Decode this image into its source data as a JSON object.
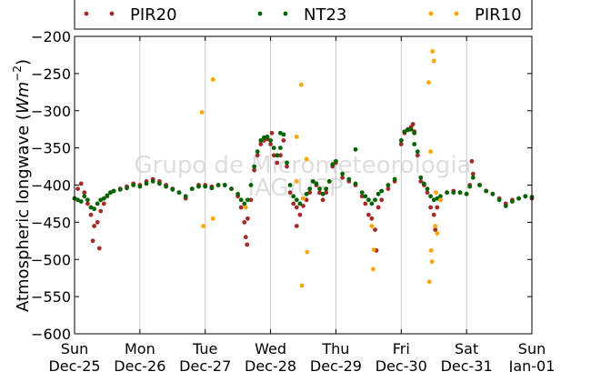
{
  "chart_data": {
    "type": "scatter",
    "ylabel": "Atmospheric longwave (Wm⁻²)",
    "ylabel_parts": {
      "text": "Atmospheric longwave (",
      "unit": "Wm",
      "exp": "−2",
      "close": ")"
    },
    "ylim": [
      -600,
      -200
    ],
    "yticks": [
      -600,
      -550,
      -500,
      -450,
      -400,
      -350,
      -300,
      -250,
      -200
    ],
    "ytick_labels": [
      "−600",
      "−550",
      "−500",
      "−450",
      "−400",
      "−350",
      "−300",
      "−250",
      "−200"
    ],
    "xlim": [
      0,
      7
    ],
    "x_unit": "days since Sun Dec-25",
    "xticks": [
      {
        "x": 0,
        "day": "Sun",
        "date": "Dec-25"
      },
      {
        "x": 1,
        "day": "Mon",
        "date": "Dec-26"
      },
      {
        "x": 2,
        "day": "Tue",
        "date": "Dec-27"
      },
      {
        "x": 3,
        "day": "Wed",
        "date": "Dec-28"
      },
      {
        "x": 4,
        "day": "Thu",
        "date": "Dec-29"
      },
      {
        "x": 5,
        "day": "Fri",
        "date": "Dec-30"
      },
      {
        "x": 6,
        "day": "Sat",
        "date": "Dec-31"
      },
      {
        "x": 7,
        "day": "Sun",
        "date": "Jan-01"
      }
    ],
    "grid": "vertical",
    "legend_placement": "top",
    "watermark": [
      "Grupo de Micrometeorologia",
      "IAG/USP"
    ],
    "series": [
      {
        "name": "PIR20",
        "color": "#a52a2a",
        "points": [
          [
            0.0,
            -418
          ],
          [
            0.05,
            -405
          ],
          [
            0.1,
            -398
          ],
          [
            0.15,
            -410
          ],
          [
            0.2,
            -425
          ],
          [
            0.25,
            -440
          ],
          [
            0.3,
            -455
          ],
          [
            0.35,
            -450
          ],
          [
            0.4,
            -435
          ],
          [
            0.45,
            -425
          ],
          [
            0.5,
            -415
          ],
          [
            0.55,
            -410
          ],
          [
            0.6,
            -408
          ],
          [
            0.7,
            -405
          ],
          [
            0.8,
            -402
          ],
          [
            0.9,
            -398
          ],
          [
            1.0,
            -400
          ],
          [
            1.1,
            -395
          ],
          [
            1.2,
            -392
          ],
          [
            1.3,
            -395
          ],
          [
            1.4,
            -400
          ],
          [
            1.5,
            -405
          ],
          [
            1.6,
            -410
          ],
          [
            1.7,
            -418
          ],
          [
            1.8,
            -405
          ],
          [
            1.9,
            -400
          ],
          [
            2.0,
            -400
          ],
          [
            2.1,
            -402
          ],
          [
            2.2,
            -400
          ],
          [
            2.3,
            -400
          ],
          [
            2.4,
            -405
          ],
          [
            2.5,
            -415
          ],
          [
            2.55,
            -430
          ],
          [
            2.6,
            -450
          ],
          [
            2.62,
            -470
          ],
          [
            2.65,
            -445
          ],
          [
            2.7,
            -420
          ],
          [
            2.75,
            -380
          ],
          [
            2.8,
            -360
          ],
          [
            2.85,
            -345
          ],
          [
            2.9,
            -340
          ],
          [
            2.95,
            -338
          ],
          [
            3.0,
            -345
          ],
          [
            3.05,
            -360
          ],
          [
            3.1,
            -370
          ],
          [
            3.15,
            -360
          ],
          [
            3.2,
            -340
          ],
          [
            3.25,
            -375
          ],
          [
            3.3,
            -410
          ],
          [
            3.35,
            -425
          ],
          [
            3.4,
            -430
          ],
          [
            3.45,
            -440
          ],
          [
            3.5,
            -428
          ],
          [
            3.55,
            -420
          ],
          [
            3.6,
            -410
          ],
          [
            3.65,
            -395
          ],
          [
            3.7,
            -400
          ],
          [
            3.75,
            -410
          ],
          [
            3.8,
            -420
          ],
          [
            3.85,
            -410
          ],
          [
            3.9,
            -395
          ],
          [
            3.95,
            -375
          ],
          [
            4.0,
            -370
          ],
          [
            4.1,
            -390
          ],
          [
            4.2,
            -395
          ],
          [
            4.3,
            -400
          ],
          [
            4.4,
            -415
          ],
          [
            4.45,
            -425
          ],
          [
            4.5,
            -440
          ],
          [
            4.55,
            -445
          ],
          [
            4.6,
            -460
          ],
          [
            4.65,
            -430
          ],
          [
            4.7,
            -420
          ],
          [
            4.8,
            -405
          ],
          [
            4.9,
            -395
          ],
          [
            5.0,
            -345
          ],
          [
            5.05,
            -330
          ],
          [
            5.1,
            -325
          ],
          [
            5.15,
            -322
          ],
          [
            5.2,
            -328
          ],
          [
            5.25,
            -360
          ],
          [
            5.3,
            -395
          ],
          [
            5.35,
            -400
          ],
          [
            5.4,
            -410
          ],
          [
            5.45,
            -430
          ],
          [
            5.5,
            -440
          ],
          [
            5.55,
            -430
          ],
          [
            5.6,
            -420
          ],
          [
            5.7,
            -410
          ],
          [
            5.8,
            -408
          ],
          [
            5.9,
            -410
          ],
          [
            6.0,
            -412
          ],
          [
            6.05,
            -400
          ],
          [
            6.1,
            -385
          ],
          [
            6.2,
            -400
          ],
          [
            6.3,
            -408
          ],
          [
            6.4,
            -412
          ],
          [
            6.5,
            -418
          ],
          [
            6.6,
            -425
          ],
          [
            6.7,
            -420
          ],
          [
            6.8,
            -418
          ],
          [
            6.9,
            -415
          ],
          [
            7.0,
            -418
          ],
          [
            0.28,
            -475
          ],
          [
            0.38,
            -485
          ],
          [
            2.64,
            -480
          ],
          [
            3.4,
            -455
          ],
          [
            4.62,
            -488
          ],
          [
            5.52,
            -460
          ],
          [
            3.02,
            -330
          ],
          [
            5.18,
            -318
          ],
          [
            6.08,
            -368
          ]
        ]
      },
      {
        "name": "NT23",
        "color": "#006400",
        "points": [
          [
            0.0,
            -418
          ],
          [
            0.05,
            -420
          ],
          [
            0.1,
            -422
          ],
          [
            0.15,
            -415
          ],
          [
            0.2,
            -420
          ],
          [
            0.25,
            -430
          ],
          [
            0.3,
            -432
          ],
          [
            0.35,
            -425
          ],
          [
            0.4,
            -420
          ],
          [
            0.45,
            -418
          ],
          [
            0.5,
            -414
          ],
          [
            0.55,
            -410
          ],
          [
            0.6,
            -408
          ],
          [
            0.7,
            -406
          ],
          [
            0.8,
            -404
          ],
          [
            0.9,
            -400
          ],
          [
            1.0,
            -402
          ],
          [
            1.1,
            -398
          ],
          [
            1.2,
            -395
          ],
          [
            1.3,
            -398
          ],
          [
            1.4,
            -402
          ],
          [
            1.5,
            -406
          ],
          [
            1.6,
            -410
          ],
          [
            1.7,
            -415
          ],
          [
            1.8,
            -405
          ],
          [
            1.9,
            -402
          ],
          [
            2.0,
            -402
          ],
          [
            2.1,
            -404
          ],
          [
            2.2,
            -400
          ],
          [
            2.3,
            -400
          ],
          [
            2.4,
            -405
          ],
          [
            2.5,
            -412
          ],
          [
            2.55,
            -420
          ],
          [
            2.6,
            -425
          ],
          [
            2.65,
            -420
          ],
          [
            2.7,
            -400
          ],
          [
            2.75,
            -375
          ],
          [
            2.8,
            -355
          ],
          [
            2.85,
            -340
          ],
          [
            2.9,
            -336
          ],
          [
            2.95,
            -335
          ],
          [
            3.0,
            -340
          ],
          [
            3.05,
            -350
          ],
          [
            3.1,
            -360
          ],
          [
            3.15,
            -350
          ],
          [
            3.2,
            -332
          ],
          [
            3.25,
            -370
          ],
          [
            3.3,
            -400
          ],
          [
            3.35,
            -415
          ],
          [
            3.4,
            -420
          ],
          [
            3.45,
            -425
          ],
          [
            3.5,
            -418
          ],
          [
            3.55,
            -412
          ],
          [
            3.6,
            -405
          ],
          [
            3.65,
            -395
          ],
          [
            3.7,
            -398
          ],
          [
            3.75,
            -405
          ],
          [
            3.8,
            -412
          ],
          [
            3.85,
            -405
          ],
          [
            3.9,
            -395
          ],
          [
            3.95,
            -372
          ],
          [
            4.0,
            -368
          ],
          [
            4.1,
            -385
          ],
          [
            4.2,
            -392
          ],
          [
            4.3,
            -398
          ],
          [
            4.4,
            -410
          ],
          [
            4.45,
            -415
          ],
          [
            4.5,
            -420
          ],
          [
            4.55,
            -425
          ],
          [
            4.6,
            -420
          ],
          [
            4.65,
            -412
          ],
          [
            4.7,
            -408
          ],
          [
            4.8,
            -400
          ],
          [
            4.9,
            -392
          ],
          [
            5.0,
            -340
          ],
          [
            5.05,
            -328
          ],
          [
            5.1,
            -326
          ],
          [
            5.15,
            -325
          ],
          [
            5.2,
            -330
          ],
          [
            5.25,
            -355
          ],
          [
            5.3,
            -390
          ],
          [
            5.35,
            -398
          ],
          [
            5.4,
            -405
          ],
          [
            5.45,
            -415
          ],
          [
            5.5,
            -420
          ],
          [
            5.55,
            -418
          ],
          [
            5.6,
            -415
          ],
          [
            5.7,
            -410
          ],
          [
            5.8,
            -410
          ],
          [
            5.9,
            -410
          ],
          [
            6.0,
            -412
          ],
          [
            6.05,
            -402
          ],
          [
            6.1,
            -390
          ],
          [
            6.2,
            -400
          ],
          [
            6.3,
            -408
          ],
          [
            6.4,
            -412
          ],
          [
            6.5,
            -420
          ],
          [
            6.6,
            -428
          ],
          [
            6.7,
            -422
          ],
          [
            6.8,
            -418
          ],
          [
            6.9,
            -415
          ],
          [
            7.0,
            -416
          ],
          [
            4.3,
            -352
          ],
          [
            5.2,
            -345
          ],
          [
            3.15,
            -330
          ]
        ]
      },
      {
        "name": "PIR10",
        "color": "#ffa500",
        "points": [
          [
            1.95,
            -302
          ],
          [
            2.12,
            -258
          ],
          [
            1.97,
            -455
          ],
          [
            2.12,
            -445
          ],
          [
            2.62,
            -430
          ],
          [
            3.4,
            -335
          ],
          [
            3.47,
            -265
          ],
          [
            3.5,
            -418
          ],
          [
            3.55,
            -365
          ],
          [
            3.56,
            -490
          ],
          [
            3.48,
            -535
          ],
          [
            3.4,
            -395
          ],
          [
            4.55,
            -455
          ],
          [
            4.57,
            -513
          ],
          [
            4.58,
            -487
          ],
          [
            5.42,
            -262
          ],
          [
            5.48,
            -220
          ],
          [
            5.5,
            -233
          ],
          [
            5.45,
            -355
          ],
          [
            5.46,
            -488
          ],
          [
            5.47,
            -503
          ],
          [
            5.43,
            -530
          ],
          [
            5.52,
            -455
          ],
          [
            5.55,
            -465
          ],
          [
            5.6,
            -420
          ],
          [
            5.53,
            -410
          ]
        ]
      }
    ]
  }
}
